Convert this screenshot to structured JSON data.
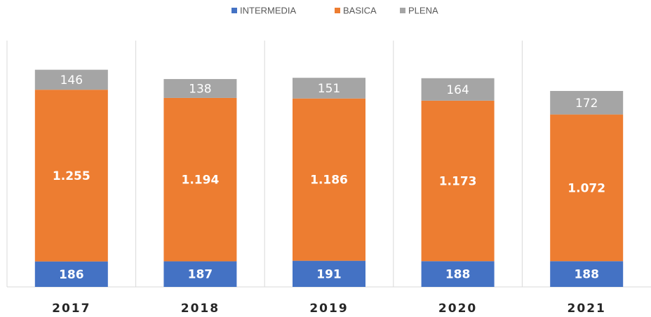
{
  "chart_data": {
    "type": "stacked_bar",
    "categories": [
      "2017",
      "2018",
      "2019",
      "2020",
      "2021"
    ],
    "series": [
      {
        "name": "INTERMEDIA",
        "color": "#4472c4",
        "values": [
          186,
          187,
          191,
          188,
          188
        ]
      },
      {
        "name": "BASICA",
        "color": "#ed7d31",
        "values": [
          1255,
          1194,
          1186,
          1173,
          1072
        ],
        "value_labels": [
          "1.255",
          "1.194",
          "1.186",
          "1.173",
          "1.072"
        ]
      },
      {
        "name": "PLENA",
        "color": "#a5a5a5",
        "values": [
          146,
          138,
          151,
          164,
          172
        ]
      }
    ],
    "ylim": [
      0,
      1800
    ],
    "legend": "top"
  }
}
